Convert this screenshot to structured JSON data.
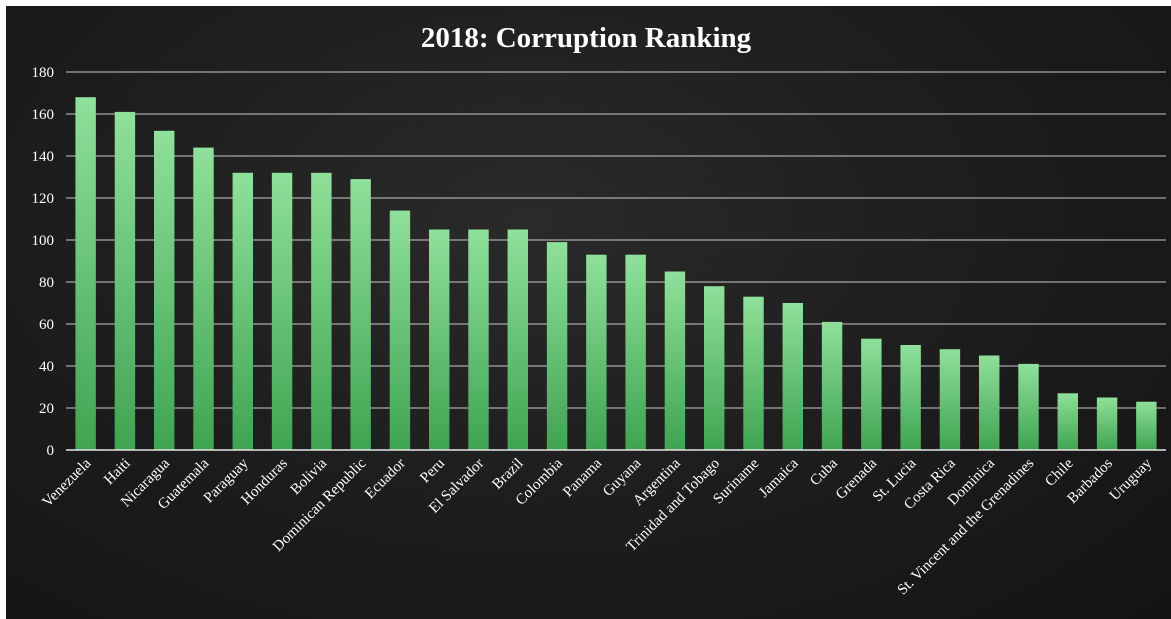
{
  "chart_data": {
    "type": "bar",
    "title": "2018: Corruption Ranking",
    "categories": [
      "Venezuela",
      "Haiti",
      "Nicaragua",
      "Guatemala",
      "Paraguay",
      "Honduras",
      "Bolivia",
      "Dominican Republic",
      "Ecuador",
      "Peru",
      "El Salvador",
      "Brazil",
      "Colombia",
      "Panama",
      "Guyana",
      "Argentina",
      "Trinidad and Tobago",
      "Suriname",
      "Jamaica",
      "Cuba",
      "Grenada",
      "St. Lucia",
      "Costa Rica",
      "Dominica",
      "St. Vincent and the Grenadines",
      "Chile",
      "Barbados",
      "Uruguay"
    ],
    "values": [
      168,
      161,
      152,
      144,
      132,
      132,
      132,
      129,
      114,
      105,
      105,
      105,
      99,
      93,
      93,
      85,
      78,
      73,
      70,
      61,
      53,
      50,
      48,
      45,
      41,
      27,
      25,
      23
    ],
    "ylim": [
      0,
      180
    ],
    "yticks": [
      0,
      20,
      40,
      60,
      80,
      100,
      120,
      140,
      160,
      180
    ],
    "grid": true,
    "legend": "none",
    "xlabel": "",
    "ylabel": "",
    "colors": {
      "bar_top": "#8fe09a",
      "bar_bottom": "#3fa452",
      "text": "#ffffff",
      "grid": "#e6e6e6"
    }
  }
}
